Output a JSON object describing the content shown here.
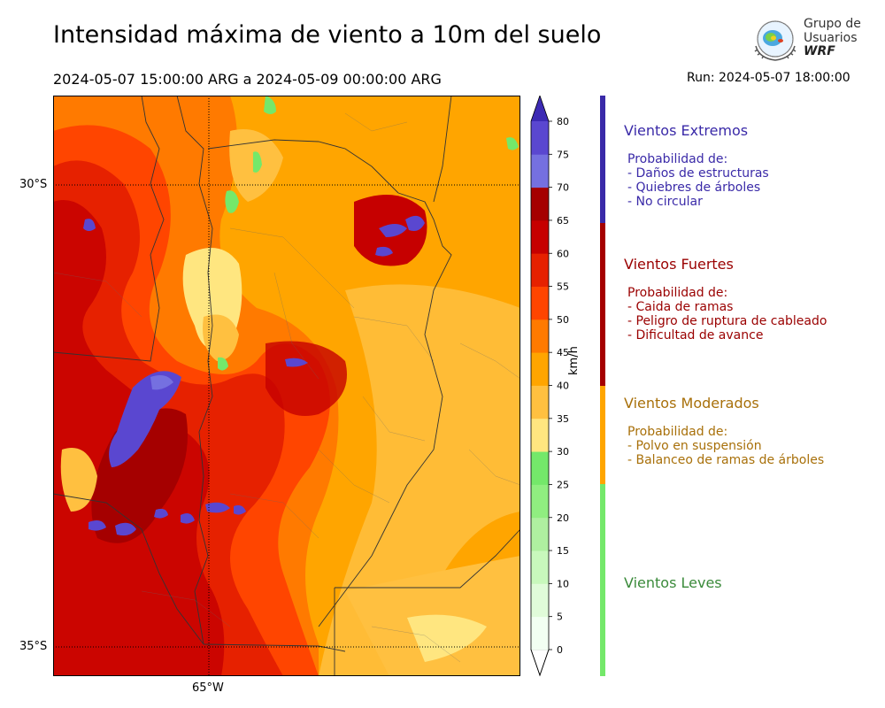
{
  "title": "Intensidad máxima de viento a 10m del suelo",
  "period": "2024-05-07 15:00:00 ARG  a  2024-05-09 00:00:00 ARG",
  "run": "Run: 2024-05-07 18:00:00",
  "logo": {
    "line1": "Grupo de",
    "line2": "Usuarios",
    "line3": "WRF"
  },
  "map": {
    "lat_labels": [
      "30°S",
      "35°S"
    ],
    "lon_labels": [
      "65°W"
    ]
  },
  "colorbar": {
    "unit": "km/h",
    "ticks": [
      "0",
      "5",
      "10",
      "15",
      "20",
      "25",
      "30",
      "35",
      "40",
      "45",
      "50",
      "55",
      "60",
      "65",
      "70",
      "75",
      "80"
    ],
    "levels": [
      0,
      5,
      10,
      15,
      20,
      25,
      30,
      35,
      40,
      45,
      50,
      55,
      60,
      65,
      70,
      75,
      80
    ],
    "colors": [
      "#f2fff2",
      "#e0fbd9",
      "#c8f8bc",
      "#afefa0",
      "#90ee80",
      "#74e86a",
      "#ffe680",
      "#ffc040",
      "#ffa500",
      "#ff7a00",
      "#ff4500",
      "#e62100",
      "#c60000",
      "#a50000",
      "#7570e0",
      "#5a47d0",
      "#4230b8"
    ],
    "under_color": "#ffffff",
    "over_color": "#3c2ab4"
  },
  "categories": [
    {
      "title": "Vientos Extremos",
      "body": [
        "Probabilidad de:",
        "- Daños de estructuras",
        "- Quiebres de árboles",
        "- No circular"
      ],
      "color": "#3a2aa8",
      "text_color": "#3a2aa8"
    },
    {
      "title": "Vientos Fuertes",
      "body": [
        "Probabilidad de:",
        "- Caida de ramas",
        "- Peligro de ruptura de cableado",
        "- Dificultad de avance"
      ],
      "color": "#a50000",
      "text_color": "#9a0000"
    },
    {
      "title": "Vientos Moderados",
      "body": [
        "Probabilidad de:",
        "- Polvo en suspensión",
        "- Balanceo de ramas de árboles"
      ],
      "color": "#ffa500",
      "text_color": "#a8700a"
    },
    {
      "title": "Vientos Leves",
      "body": [],
      "color": "#74e86a",
      "text_color": "#3a8a3a"
    }
  ]
}
